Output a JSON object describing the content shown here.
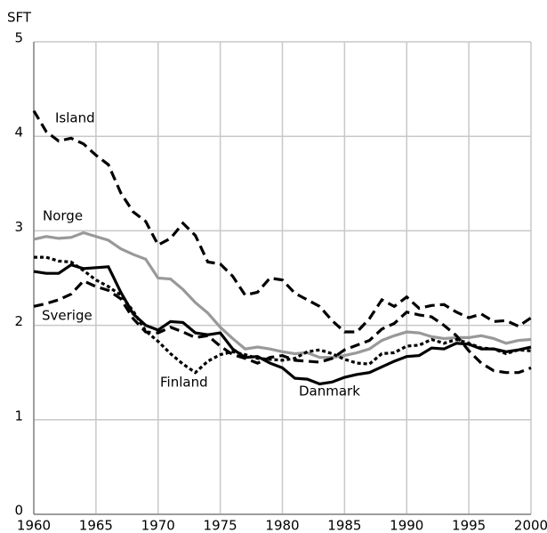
{
  "chart_data": {
    "type": "line",
    "y_label": "SFT",
    "x": [
      1960,
      1961,
      1962,
      1963,
      1964,
      1965,
      1966,
      1967,
      1968,
      1969,
      1970,
      1971,
      1972,
      1973,
      1974,
      1975,
      1976,
      1977,
      1978,
      1979,
      1980,
      1981,
      1982,
      1983,
      1984,
      1985,
      1986,
      1987,
      1988,
      1989,
      1990,
      1991,
      1992,
      1993,
      1994,
      1995,
      1996,
      1997,
      1998,
      1999,
      2000
    ],
    "xlim": [
      1960,
      2000
    ],
    "xticks": [
      1960,
      1965,
      1970,
      1975,
      1980,
      1985,
      1990,
      1995,
      2000
    ],
    "ylim": [
      0,
      5
    ],
    "yticks": [
      0,
      1,
      2,
      3,
      4,
      5
    ],
    "grid": true,
    "series": [
      {
        "name": "Island",
        "color": "#000000",
        "dash": "dashed",
        "values": [
          4.27,
          4.05,
          3.95,
          3.98,
          3.92,
          3.8,
          3.7,
          3.4,
          3.2,
          3.1,
          2.85,
          2.92,
          3.08,
          2.95,
          2.67,
          2.65,
          2.52,
          2.32,
          2.35,
          2.5,
          2.48,
          2.34,
          2.27,
          2.2,
          2.05,
          1.93,
          1.93,
          2.07,
          2.27,
          2.2,
          2.3,
          2.18,
          2.21,
          2.22,
          2.14,
          2.08,
          2.12,
          2.04,
          2.05,
          1.99,
          2.08
        ]
      },
      {
        "name": "Norge",
        "color": "#999999",
        "dash": "solid",
        "values": [
          2.91,
          2.94,
          2.92,
          2.93,
          2.98,
          2.94,
          2.9,
          2.81,
          2.75,
          2.7,
          2.5,
          2.49,
          2.38,
          2.24,
          2.13,
          1.98,
          1.86,
          1.75,
          1.77,
          1.75,
          1.72,
          1.7,
          1.71,
          1.66,
          1.66,
          1.68,
          1.71,
          1.75,
          1.84,
          1.89,
          1.93,
          1.92,
          1.88,
          1.86,
          1.87,
          1.87,
          1.89,
          1.86,
          1.81,
          1.84,
          1.85
        ]
      },
      {
        "name": "Sverige",
        "color": "#000000",
        "dash": "dashed",
        "values": [
          2.2,
          2.23,
          2.27,
          2.33,
          2.47,
          2.41,
          2.37,
          2.28,
          2.07,
          1.93,
          1.92,
          1.98,
          1.93,
          1.87,
          1.89,
          1.78,
          1.69,
          1.65,
          1.6,
          1.66,
          1.68,
          1.63,
          1.62,
          1.61,
          1.65,
          1.74,
          1.79,
          1.84,
          1.96,
          2.02,
          2.14,
          2.11,
          2.09,
          2.0,
          1.89,
          1.73,
          1.6,
          1.52,
          1.5,
          1.5,
          1.55
        ]
      },
      {
        "name": "Finland",
        "color": "#000000",
        "dash": "dotted",
        "values": [
          2.72,
          2.72,
          2.68,
          2.67,
          2.58,
          2.48,
          2.41,
          2.32,
          2.15,
          1.94,
          1.83,
          1.7,
          1.59,
          1.5,
          1.62,
          1.69,
          1.72,
          1.69,
          1.65,
          1.64,
          1.63,
          1.65,
          1.72,
          1.74,
          1.7,
          1.64,
          1.6,
          1.59,
          1.7,
          1.71,
          1.78,
          1.79,
          1.85,
          1.81,
          1.85,
          1.81,
          1.76,
          1.75,
          1.7,
          1.74,
          1.73
        ]
      },
      {
        "name": "Danmark",
        "color": "#000000",
        "dash": "solid",
        "values": [
          2.57,
          2.55,
          2.55,
          2.64,
          2.6,
          2.61,
          2.62,
          2.35,
          2.12,
          2.0,
          1.95,
          2.04,
          2.03,
          1.92,
          1.9,
          1.92,
          1.75,
          1.66,
          1.67,
          1.6,
          1.55,
          1.44,
          1.43,
          1.38,
          1.4,
          1.45,
          1.48,
          1.5,
          1.56,
          1.62,
          1.67,
          1.68,
          1.76,
          1.75,
          1.81,
          1.8,
          1.75,
          1.75,
          1.72,
          1.74,
          1.77
        ]
      }
    ]
  }
}
